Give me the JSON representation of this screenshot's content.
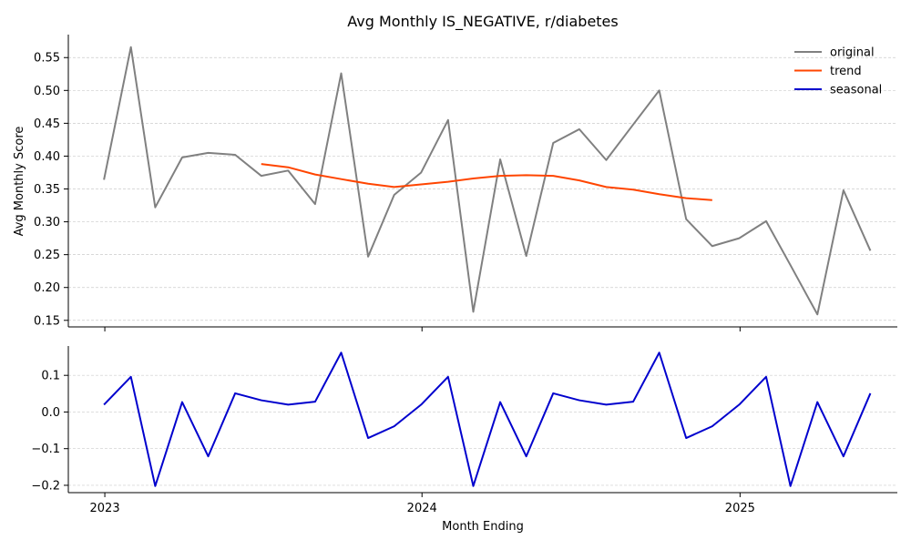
{
  "chart_data": [
    {
      "type": "line",
      "title": "Avg Monthly IS_NEGATIVE, r/diabetes",
      "ylabel": "Avg Monthly Score",
      "xlabel": "",
      "x": [
        "2022-12-31",
        "2023-01-31",
        "2023-02-28",
        "2023-03-31",
        "2023-04-30",
        "2023-05-31",
        "2023-06-30",
        "2023-07-31",
        "2023-08-31",
        "2023-09-30",
        "2023-10-31",
        "2023-11-30",
        "2023-12-31",
        "2024-01-31",
        "2024-02-29",
        "2024-03-31",
        "2024-04-30",
        "2024-05-31",
        "2024-06-30",
        "2024-07-31",
        "2024-08-31",
        "2024-09-30",
        "2024-10-31",
        "2024-11-30",
        "2024-12-31",
        "2025-01-31",
        "2025-02-28",
        "2025-03-31",
        "2025-04-30",
        "2025-05-31",
        "2025-06-30"
      ],
      "ylim": [
        0.14,
        0.585
      ],
      "yticks": [
        "0.15",
        "0.20",
        "0.25",
        "0.30",
        "0.35",
        "0.40",
        "0.45",
        "0.50",
        "0.55"
      ],
      "grid": true,
      "legend_position": "top-right",
      "series": [
        {
          "name": "original",
          "color": "#808080",
          "values": [
            0.364,
            0.566,
            0.322,
            0.398,
            0.405,
            0.402,
            0.37,
            0.378,
            0.327,
            0.526,
            0.247,
            0.341,
            0.375,
            0.455,
            0.163,
            0.395,
            0.248,
            0.42,
            0.441,
            0.394,
            0.448,
            0.5,
            0.304,
            0.263,
            0.275,
            0.301,
            0.234,
            0.159,
            0.348,
            0.256,
            null
          ]
        },
        {
          "name": "trend",
          "color": "#ff4500",
          "values": [
            null,
            null,
            null,
            null,
            null,
            null,
            0.388,
            0.383,
            0.372,
            0.365,
            0.358,
            0.353,
            0.357,
            0.361,
            0.366,
            0.37,
            0.371,
            0.37,
            0.363,
            0.353,
            0.349,
            0.342,
            0.336,
            0.333,
            null,
            null,
            null,
            null,
            null,
            null,
            null
          ]
        }
      ]
    },
    {
      "type": "line",
      "title": "",
      "xlabel": "Month Ending",
      "ylabel": "",
      "x": [
        "2022-12-31",
        "2023-01-31",
        "2023-02-28",
        "2023-03-31",
        "2023-04-30",
        "2023-05-31",
        "2023-06-30",
        "2023-07-31",
        "2023-08-31",
        "2023-09-30",
        "2023-10-31",
        "2023-11-30",
        "2023-12-31",
        "2024-01-31",
        "2024-02-29",
        "2024-03-31",
        "2024-04-30",
        "2024-05-31",
        "2024-06-30",
        "2024-07-31",
        "2024-08-31",
        "2024-09-30",
        "2024-10-31",
        "2024-11-30",
        "2024-12-31",
        "2025-01-31",
        "2025-02-28",
        "2025-03-31",
        "2025-04-30",
        "2025-05-31",
        "2025-06-30"
      ],
      "xticks": [
        {
          "label": "2023",
          "date": "2023-01-01"
        },
        {
          "label": "2024",
          "date": "2024-01-01"
        },
        {
          "label": "2025",
          "date": "2025-01-01"
        }
      ],
      "ylim": [
        -0.22,
        0.18
      ],
      "yticks": [
        "−0.2",
        "−0.1",
        "0.0",
        "0.1"
      ],
      "grid": true,
      "series": [
        {
          "name": "seasonal",
          "color": "#0000cd",
          "values": [
            0.02,
            0.096,
            -0.202,
            0.027,
            -0.121,
            0.051,
            0.032,
            0.02,
            0.028,
            0.162,
            -0.071,
            -0.039,
            0.02,
            0.096,
            -0.202,
            0.027,
            -0.121,
            0.051,
            0.032,
            0.02,
            0.028,
            0.162,
            -0.071,
            -0.039,
            0.02,
            0.096,
            -0.202,
            0.027,
            -0.121,
            0.051,
            null
          ]
        }
      ]
    }
  ]
}
